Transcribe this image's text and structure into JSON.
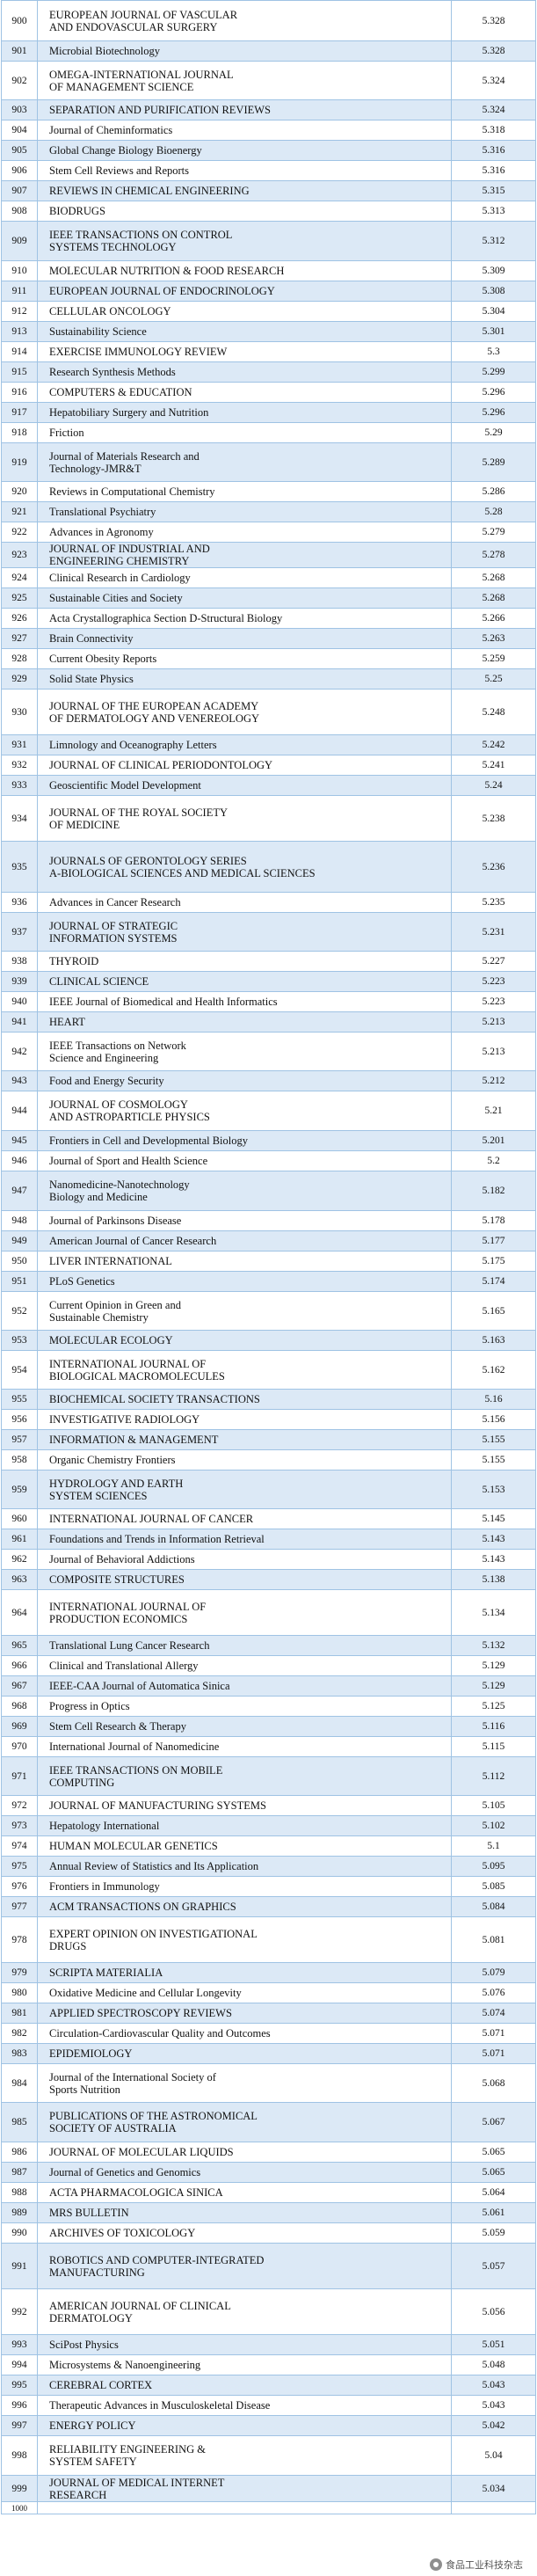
{
  "rows": [
    {
      "rank": "900",
      "title": "EUROPEAN JOURNAL OF VASCULAR\nAND ENDOVASCULAR SURGERY",
      "value": "5.328",
      "h": 46
    },
    {
      "rank": "901",
      "title": "Microbial Biotechnology",
      "value": "5.328",
      "h": 23
    },
    {
      "rank": "902",
      "title": "OMEGA-INTERNATIONAL JOURNAL\nOF MANAGEMENT SCIENCE",
      "value": "5.324",
      "h": 44
    },
    {
      "rank": "903",
      "title": "SEPARATION AND PURIFICATION REVIEWS",
      "value": "5.324",
      "h": 23
    },
    {
      "rank": "904",
      "title": "Journal of Cheminformatics",
      "value": "5.318",
      "h": 23
    },
    {
      "rank": "905",
      "title": "Global Change Biology Bioenergy",
      "value": "5.316",
      "h": 23
    },
    {
      "rank": "906",
      "title": "Stem Cell Reviews and Reports",
      "value": "5.316",
      "h": 23
    },
    {
      "rank": "907",
      "title": "REVIEWS IN CHEMICAL ENGINEERING",
      "value": "5.315",
      "h": 23
    },
    {
      "rank": "908",
      "title": "BIODRUGS",
      "value": "5.313",
      "h": 23
    },
    {
      "rank": "909",
      "title": "IEEE TRANSACTIONS ON CONTROL\n SYSTEMS TECHNOLOGY",
      "value": "5.312",
      "h": 45
    },
    {
      "rank": "910",
      "title": "MOLECULAR NUTRITION & FOOD RESEARCH",
      "value": "5.309",
      "h": 23
    },
    {
      "rank": "911",
      "title": "EUROPEAN JOURNAL OF ENDOCRINOLOGY",
      "value": "5.308",
      "h": 23
    },
    {
      "rank": "912",
      "title": "CELLULAR ONCOLOGY",
      "value": "5.304",
      "h": 23
    },
    {
      "rank": "913",
      "title": "Sustainability Science",
      "value": "5.301",
      "h": 23
    },
    {
      "rank": "914",
      "title": "EXERCISE IMMUNOLOGY REVIEW",
      "value": "5.3",
      "h": 23
    },
    {
      "rank": "915",
      "title": "Research Synthesis Methods",
      "value": "5.299",
      "h": 23
    },
    {
      "rank": "916",
      "title": "COMPUTERS & EDUCATION",
      "value": "5.296",
      "h": 23
    },
    {
      "rank": "917",
      "title": "Hepatobiliary Surgery and Nutrition",
      "value": "5.296",
      "h": 23
    },
    {
      "rank": "918",
      "title": "Friction",
      "value": "5.29",
      "h": 23
    },
    {
      "rank": "919",
      "title": "Journal of Materials Research and\nTechnology-JMR&T",
      "value": "5.289",
      "h": 44
    },
    {
      "rank": "920",
      "title": "Reviews in Computational Chemistry",
      "value": "5.286",
      "h": 23
    },
    {
      "rank": "921",
      "title": "Translational Psychiatry",
      "value": "5.28",
      "h": 23
    },
    {
      "rank": "922",
      "title": "Advances in Agronomy",
      "value": "5.279",
      "h": 23
    },
    {
      "rank": "923",
      "title": "JOURNAL OF INDUSTRIAL AND\nENGINEERING CHEMISTRY",
      "value": "5.278",
      "h": 23
    },
    {
      "rank": "924",
      "title": "Clinical Research in Cardiology",
      "value": "5.268",
      "h": 23
    },
    {
      "rank": "925",
      "title": "Sustainable Cities and Society",
      "value": "5.268",
      "h": 23
    },
    {
      "rank": "926",
      "title": "Acta Crystallographica Section D-Structural Biology",
      "value": "5.266",
      "h": 23
    },
    {
      "rank": "927",
      "title": "Brain Connectivity",
      "value": "5.263",
      "h": 23
    },
    {
      "rank": "928",
      "title": "Current Obesity Reports",
      "value": "5.259",
      "h": 23
    },
    {
      "rank": "929",
      "title": "Solid State Physics",
      "value": "5.25",
      "h": 23
    },
    {
      "rank": "930",
      "title": "JOURNAL OF THE EUROPEAN ACADEMY\nOF DERMATOLOGY AND VENEREOLOGY",
      "value": "5.248",
      "h": 52
    },
    {
      "rank": "931",
      "title": "Limnology and Oceanography Letters",
      "value": "5.242",
      "h": 23
    },
    {
      "rank": "932",
      "title": "JOURNAL OF CLINICAL PERIODONTOLOGY",
      "value": "5.241",
      "h": 23
    },
    {
      "rank": "933",
      "title": "Geoscientific Model Development",
      "value": "5.24",
      "h": 23
    },
    {
      "rank": "934",
      "title": "JOURNAL OF THE ROYAL SOCIETY\nOF MEDICINE",
      "value": "5.238",
      "h": 52
    },
    {
      "rank": "935",
      "title": "JOURNALS OF GERONTOLOGY SERIES\n A-BIOLOGICAL SCIENCES AND MEDICAL SCIENCES",
      "value": "5.236",
      "h": 58
    },
    {
      "rank": "936",
      "title": "Advances in Cancer Research",
      "value": "5.235",
      "h": 23
    },
    {
      "rank": "937",
      "title": "JOURNAL OF STRATEGIC\nINFORMATION SYSTEMS",
      "value": "5.231",
      "h": 44
    },
    {
      "rank": "938",
      "title": "THYROID",
      "value": "5.227",
      "h": 23
    },
    {
      "rank": "939",
      "title": "CLINICAL SCIENCE",
      "value": "5.223",
      "h": 23
    },
    {
      "rank": "940",
      "title": "IEEE Journal of Biomedical and Health Informatics",
      "value": "5.223",
      "h": 23
    },
    {
      "rank": "941",
      "title": "HEART",
      "value": "5.213",
      "h": 23
    },
    {
      "rank": "942",
      "title": "IEEE Transactions on Network\nScience and Engineering",
      "value": "5.213",
      "h": 44
    },
    {
      "rank": "943",
      "title": "Food and Energy Security",
      "value": "5.212",
      "h": 23
    },
    {
      "rank": "944",
      "title": "JOURNAL OF COSMOLOGY\nAND ASTROPARTICLE PHYSICS",
      "value": "5.21",
      "h": 45
    },
    {
      "rank": "945",
      "title": "Frontiers in Cell and Developmental Biology",
      "value": "5.201",
      "h": 23
    },
    {
      "rank": "946",
      "title": "Journal of Sport and Health Science",
      "value": "5.2",
      "h": 23
    },
    {
      "rank": "947",
      "title": "Nanomedicine-Nanotechnology\nBiology and Medicine",
      "value": "5.182",
      "h": 45
    },
    {
      "rank": "948",
      "title": "Journal of Parkinsons Disease",
      "value": "5.178",
      "h": 23
    },
    {
      "rank": "949",
      "title": "American Journal of Cancer Research",
      "value": "5.177",
      "h": 23
    },
    {
      "rank": "950",
      "title": "LIVER INTERNATIONAL",
      "value": "5.175",
      "h": 23
    },
    {
      "rank": "951",
      "title": "PLoS Genetics",
      "value": "5.174",
      "h": 23
    },
    {
      "rank": "952",
      "title": "Current Opinion in Green and\nSustainable Chemistry",
      "value": "5.165",
      "h": 44
    },
    {
      "rank": "953",
      "title": "MOLECULAR ECOLOGY",
      "value": "5.163",
      "h": 23
    },
    {
      "rank": "954",
      "title": "INTERNATIONAL JOURNAL OF\nBIOLOGICAL MACROMOLECULES",
      "value": "5.162",
      "h": 44
    },
    {
      "rank": "955",
      "title": "BIOCHEMICAL SOCIETY TRANSACTIONS",
      "value": "5.16",
      "h": 23
    },
    {
      "rank": "956",
      "title": "INVESTIGATIVE RADIOLOGY",
      "value": "5.156",
      "h": 23
    },
    {
      "rank": "957",
      "title": "INFORMATION & MANAGEMENT",
      "value": "5.155",
      "h": 23
    },
    {
      "rank": "958",
      "title": "Organic Chemistry Frontiers",
      "value": "5.155",
      "h": 23
    },
    {
      "rank": "959",
      "title": "HYDROLOGY AND EARTH\nSYSTEM SCIENCES",
      "value": "5.153",
      "h": 44
    },
    {
      "rank": "960",
      "title": "INTERNATIONAL JOURNAL OF CANCER",
      "value": "5.145",
      "h": 23
    },
    {
      "rank": "961",
      "title": "Foundations and Trends in Information Retrieval",
      "value": "5.143",
      "h": 23
    },
    {
      "rank": "962",
      "title": "Journal of Behavioral Addictions",
      "value": "5.143",
      "h": 23
    },
    {
      "rank": "963",
      "title": "COMPOSITE STRUCTURES",
      "value": "5.138",
      "h": 23
    },
    {
      "rank": "964",
      "title": "INTERNATIONAL JOURNAL OF\nPRODUCTION ECONOMICS",
      "value": "5.134",
      "h": 52
    },
    {
      "rank": "965",
      "title": "Translational Lung Cancer Research",
      "value": "5.132",
      "h": 23
    },
    {
      "rank": "966",
      "title": "Clinical and Translational Allergy",
      "value": "5.129",
      "h": 23
    },
    {
      "rank": "967",
      "title": "IEEE-CAA Journal of Automatica Sinica",
      "value": "5.129",
      "h": 23
    },
    {
      "rank": "968",
      "title": "Progress in Optics",
      "value": "5.125",
      "h": 23
    },
    {
      "rank": "969",
      "title": "Stem Cell Research & Therapy",
      "value": "5.116",
      "h": 23
    },
    {
      "rank": "970",
      "title": "International Journal of Nanomedicine",
      "value": "5.115",
      "h": 23
    },
    {
      "rank": "971",
      "title": "IEEE TRANSACTIONS ON MOBILE\nCOMPUTING",
      "value": "5.112",
      "h": 44
    },
    {
      "rank": "972",
      "title": "JOURNAL OF MANUFACTURING SYSTEMS",
      "value": "5.105",
      "h": 23
    },
    {
      "rank": "973",
      "title": "Hepatology International",
      "value": "5.102",
      "h": 23
    },
    {
      "rank": "974",
      "title": "HUMAN MOLECULAR GENETICS",
      "value": "5.1",
      "h": 23
    },
    {
      "rank": "975",
      "title": "Annual Review of Statistics and Its Application",
      "value": "5.095",
      "h": 23
    },
    {
      "rank": "976",
      "title": "Frontiers in Immunology",
      "value": "5.085",
      "h": 23
    },
    {
      "rank": "977",
      "title": "ACM TRANSACTIONS ON GRAPHICS",
      "value": "5.084",
      "h": 23
    },
    {
      "rank": "978",
      "title": "EXPERT OPINION ON INVESTIGATIONAL\nDRUGS",
      "value": "5.081",
      "h": 52
    },
    {
      "rank": "979",
      "title": "SCRIPTA MATERIALIA",
      "value": "5.079",
      "h": 23
    },
    {
      "rank": "980",
      "title": "Oxidative Medicine and Cellular Longevity",
      "value": "5.076",
      "h": 23
    },
    {
      "rank": "981",
      "title": "APPLIED SPECTROSCOPY REVIEWS",
      "value": "5.074",
      "h": 23
    },
    {
      "rank": "982",
      "title": "Circulation-Cardiovascular Quality and Outcomes",
      "value": "5.071",
      "h": 23
    },
    {
      "rank": "983",
      "title": "EPIDEMIOLOGY",
      "value": "5.071",
      "h": 23
    },
    {
      "rank": "984",
      "title": "Journal of the International Society of\nSports Nutrition",
      "value": "5.068",
      "h": 44
    },
    {
      "rank": "985",
      "title": "PUBLICATIONS OF THE ASTRONOMICAL\nSOCIETY OF AUSTRALIA",
      "value": "5.067",
      "h": 45
    },
    {
      "rank": "986",
      "title": "JOURNAL OF MOLECULAR LIQUIDS",
      "value": "5.065",
      "h": 23
    },
    {
      "rank": "987",
      "title": "Journal of Genetics and Genomics",
      "value": "5.065",
      "h": 23
    },
    {
      "rank": "988",
      "title": "ACTA PHARMACOLOGICA SINICA",
      "value": "5.064",
      "h": 23
    },
    {
      "rank": "989",
      "title": "MRS BULLETIN",
      "value": "5.061",
      "h": 23
    },
    {
      "rank": "990",
      "title": "ARCHIVES OF TOXICOLOGY",
      "value": "5.059",
      "h": 23
    },
    {
      "rank": "991",
      "title": "ROBOTICS AND COMPUTER-INTEGRATED\nMANUFACTURING",
      "value": "5.057",
      "h": 52
    },
    {
      "rank": "992",
      "title": "AMERICAN JOURNAL OF CLINICAL\nDERMATOLOGY",
      "value": "5.056",
      "h": 52
    },
    {
      "rank": "993",
      "title": "SciPost Physics",
      "value": "5.051",
      "h": 23
    },
    {
      "rank": "994",
      "title": "Microsystems & Nanoengineering",
      "value": "5.048",
      "h": 23
    },
    {
      "rank": "995",
      "title": "CEREBRAL CORTEX",
      "value": "5.043",
      "h": 23
    },
    {
      "rank": "996",
      "title": "Therapeutic Advances in Musculoskeletal Disease",
      "value": "5.043",
      "h": 23
    },
    {
      "rank": "997",
      "title": "ENERGY POLICY",
      "value": "5.042",
      "h": 23
    },
    {
      "rank": "998",
      "title": "RELIABILITY ENGINEERING &\nSYSTEM SAFETY",
      "value": "5.04",
      "h": 45
    },
    {
      "rank": "999",
      "title": "JOURNAL OF MEDICAL INTERNET\nRESEARCH",
      "value": "5.034",
      "h": 30
    }
  ],
  "watermark": "食品工业科技杂志",
  "footer_rank": "1000"
}
